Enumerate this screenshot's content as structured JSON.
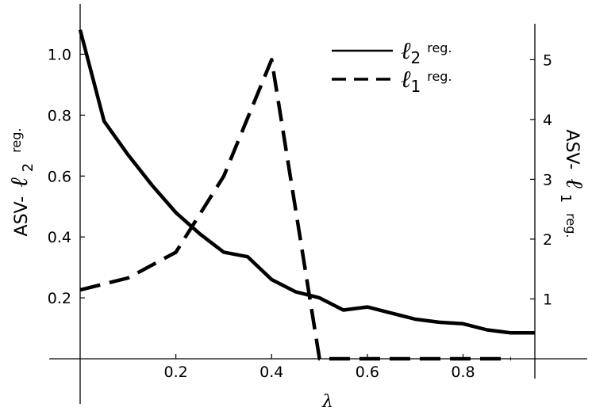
{
  "chart_data": {
    "type": "line",
    "xlabel": "λ",
    "ylabel_left": {
      "prefix": "ASV-",
      "sym": "ℓ",
      "sub": "2",
      "suffix": "reg."
    },
    "ylabel_right": {
      "prefix": "ASV-",
      "sym": "ℓ",
      "sub": "1",
      "suffix": "reg."
    },
    "xlim": [
      0,
      0.95
    ],
    "ylim_left": [
      0,
      1.1
    ],
    "ylim_right": [
      0,
      5.6
    ],
    "x_ticks": [
      0.2,
      0.4,
      0.6,
      0.8
    ],
    "x_tick_labels": [
      "0.2",
      "0.4",
      "0.6",
      "0.8"
    ],
    "y_left_ticks": [
      0.2,
      0.4,
      0.6,
      0.8,
      1.0
    ],
    "y_left_tick_labels": [
      "0.2",
      "0.4",
      "0.6",
      "0.8",
      "1.0"
    ],
    "y_right_ticks": [
      1,
      2,
      3,
      4,
      5
    ],
    "y_right_tick_labels": [
      "1",
      "2",
      "3",
      "4",
      "5"
    ],
    "grid": false,
    "legend_position": "top-right",
    "series": [
      {
        "name": "ℓ2 reg.",
        "legend": {
          "sym": "ℓ",
          "sub": "2",
          "suffix": "reg."
        },
        "axis": "left",
        "style": "solid",
        "x": [
          0,
          0.05,
          0.1,
          0.15,
          0.2,
          0.25,
          0.3,
          0.35,
          0.4,
          0.45,
          0.5,
          0.55,
          0.6,
          0.65,
          0.7,
          0.75,
          0.8,
          0.85,
          0.9,
          0.95
        ],
        "y": [
          1.08,
          0.78,
          0.67,
          0.57,
          0.48,
          0.41,
          0.35,
          0.335,
          0.26,
          0.22,
          0.2,
          0.16,
          0.17,
          0.15,
          0.13,
          0.12,
          0.115,
          0.095,
          0.085,
          0.085
        ]
      },
      {
        "name": "ℓ1 reg.",
        "legend": {
          "sym": "ℓ",
          "sub": "1",
          "suffix": "reg."
        },
        "axis": "right",
        "style": "dashed",
        "x": [
          0,
          0.1,
          0.2,
          0.3,
          0.4,
          0.5,
          0.6,
          0.7,
          0.8,
          0.9
        ],
        "y": [
          1.15,
          1.35,
          1.78,
          3.05,
          5.0,
          0.0,
          0.0,
          0.0,
          0.0,
          0.0
        ]
      }
    ]
  }
}
